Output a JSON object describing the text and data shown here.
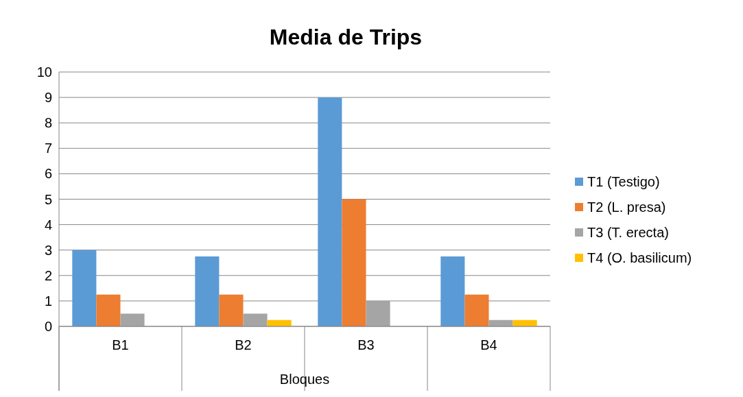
{
  "chart_data": {
    "type": "bar",
    "title": "Media de Trips",
    "xlabel": "Bloques",
    "categories": [
      "B1",
      "B2",
      "B3",
      "B4"
    ],
    "series": [
      {
        "name": "T1 (Testigo)",
        "color": "#5b9bd5",
        "values": [
          3,
          2.75,
          9,
          2.75
        ]
      },
      {
        "name": "T2 (L. presa)",
        "color": "#ed7d31",
        "values": [
          1.25,
          1.25,
          5,
          1.25
        ]
      },
      {
        "name": "T3 (T. erecta)",
        "color": "#a5a5a5",
        "values": [
          0.5,
          0.5,
          1,
          0.25
        ]
      },
      {
        "name": "T4 (O. basilicum)",
        "color": "#ffc000",
        "values": [
          0,
          0.25,
          0,
          0.25
        ]
      }
    ],
    "ylim": [
      0,
      10
    ],
    "yticks": [
      0,
      1,
      2,
      3,
      4,
      5,
      6,
      7,
      8,
      9,
      10
    ],
    "grid": "y",
    "legend": "right"
  }
}
